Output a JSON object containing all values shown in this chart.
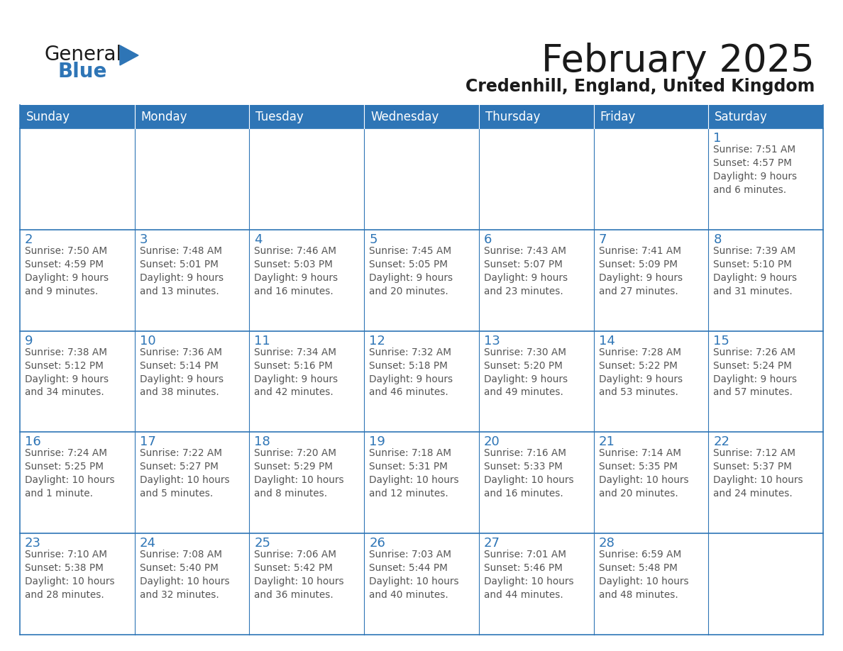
{
  "title": "February 2025",
  "subtitle": "Credenhill, England, United Kingdom",
  "header_bg": "#2E75B6",
  "header_text_color": "#FFFFFF",
  "cell_border_color": "#2E75B6",
  "day_number_color": "#2E75B6",
  "info_text_color": "#555555",
  "background_color": "#FFFFFF",
  "days_of_week": [
    "Sunday",
    "Monday",
    "Tuesday",
    "Wednesday",
    "Thursday",
    "Friday",
    "Saturday"
  ],
  "weeks": [
    [
      {
        "day": null,
        "info": ""
      },
      {
        "day": null,
        "info": ""
      },
      {
        "day": null,
        "info": ""
      },
      {
        "day": null,
        "info": ""
      },
      {
        "day": null,
        "info": ""
      },
      {
        "day": null,
        "info": ""
      },
      {
        "day": 1,
        "info": "Sunrise: 7:51 AM\nSunset: 4:57 PM\nDaylight: 9 hours\nand 6 minutes."
      }
    ],
    [
      {
        "day": 2,
        "info": "Sunrise: 7:50 AM\nSunset: 4:59 PM\nDaylight: 9 hours\nand 9 minutes."
      },
      {
        "day": 3,
        "info": "Sunrise: 7:48 AM\nSunset: 5:01 PM\nDaylight: 9 hours\nand 13 minutes."
      },
      {
        "day": 4,
        "info": "Sunrise: 7:46 AM\nSunset: 5:03 PM\nDaylight: 9 hours\nand 16 minutes."
      },
      {
        "day": 5,
        "info": "Sunrise: 7:45 AM\nSunset: 5:05 PM\nDaylight: 9 hours\nand 20 minutes."
      },
      {
        "day": 6,
        "info": "Sunrise: 7:43 AM\nSunset: 5:07 PM\nDaylight: 9 hours\nand 23 minutes."
      },
      {
        "day": 7,
        "info": "Sunrise: 7:41 AM\nSunset: 5:09 PM\nDaylight: 9 hours\nand 27 minutes."
      },
      {
        "day": 8,
        "info": "Sunrise: 7:39 AM\nSunset: 5:10 PM\nDaylight: 9 hours\nand 31 minutes."
      }
    ],
    [
      {
        "day": 9,
        "info": "Sunrise: 7:38 AM\nSunset: 5:12 PM\nDaylight: 9 hours\nand 34 minutes."
      },
      {
        "day": 10,
        "info": "Sunrise: 7:36 AM\nSunset: 5:14 PM\nDaylight: 9 hours\nand 38 minutes."
      },
      {
        "day": 11,
        "info": "Sunrise: 7:34 AM\nSunset: 5:16 PM\nDaylight: 9 hours\nand 42 minutes."
      },
      {
        "day": 12,
        "info": "Sunrise: 7:32 AM\nSunset: 5:18 PM\nDaylight: 9 hours\nand 46 minutes."
      },
      {
        "day": 13,
        "info": "Sunrise: 7:30 AM\nSunset: 5:20 PM\nDaylight: 9 hours\nand 49 minutes."
      },
      {
        "day": 14,
        "info": "Sunrise: 7:28 AM\nSunset: 5:22 PM\nDaylight: 9 hours\nand 53 minutes."
      },
      {
        "day": 15,
        "info": "Sunrise: 7:26 AM\nSunset: 5:24 PM\nDaylight: 9 hours\nand 57 minutes."
      }
    ],
    [
      {
        "day": 16,
        "info": "Sunrise: 7:24 AM\nSunset: 5:25 PM\nDaylight: 10 hours\nand 1 minute."
      },
      {
        "day": 17,
        "info": "Sunrise: 7:22 AM\nSunset: 5:27 PM\nDaylight: 10 hours\nand 5 minutes."
      },
      {
        "day": 18,
        "info": "Sunrise: 7:20 AM\nSunset: 5:29 PM\nDaylight: 10 hours\nand 8 minutes."
      },
      {
        "day": 19,
        "info": "Sunrise: 7:18 AM\nSunset: 5:31 PM\nDaylight: 10 hours\nand 12 minutes."
      },
      {
        "day": 20,
        "info": "Sunrise: 7:16 AM\nSunset: 5:33 PM\nDaylight: 10 hours\nand 16 minutes."
      },
      {
        "day": 21,
        "info": "Sunrise: 7:14 AM\nSunset: 5:35 PM\nDaylight: 10 hours\nand 20 minutes."
      },
      {
        "day": 22,
        "info": "Sunrise: 7:12 AM\nSunset: 5:37 PM\nDaylight: 10 hours\nand 24 minutes."
      }
    ],
    [
      {
        "day": 23,
        "info": "Sunrise: 7:10 AM\nSunset: 5:38 PM\nDaylight: 10 hours\nand 28 minutes."
      },
      {
        "day": 24,
        "info": "Sunrise: 7:08 AM\nSunset: 5:40 PM\nDaylight: 10 hours\nand 32 minutes."
      },
      {
        "day": 25,
        "info": "Sunrise: 7:06 AM\nSunset: 5:42 PM\nDaylight: 10 hours\nand 36 minutes."
      },
      {
        "day": 26,
        "info": "Sunrise: 7:03 AM\nSunset: 5:44 PM\nDaylight: 10 hours\nand 40 minutes."
      },
      {
        "day": 27,
        "info": "Sunrise: 7:01 AM\nSunset: 5:46 PM\nDaylight: 10 hours\nand 44 minutes."
      },
      {
        "day": 28,
        "info": "Sunrise: 6:59 AM\nSunset: 5:48 PM\nDaylight: 10 hours\nand 48 minutes."
      },
      {
        "day": null,
        "info": ""
      }
    ]
  ],
  "logo_color_general": "#1a1a1a",
  "logo_color_blue": "#2E75B6",
  "logo_triangle_color": "#2E75B6",
  "title_fontsize": 38,
  "subtitle_fontsize": 17,
  "header_fontsize": 12,
  "day_num_fontsize": 13,
  "info_fontsize": 9.8
}
